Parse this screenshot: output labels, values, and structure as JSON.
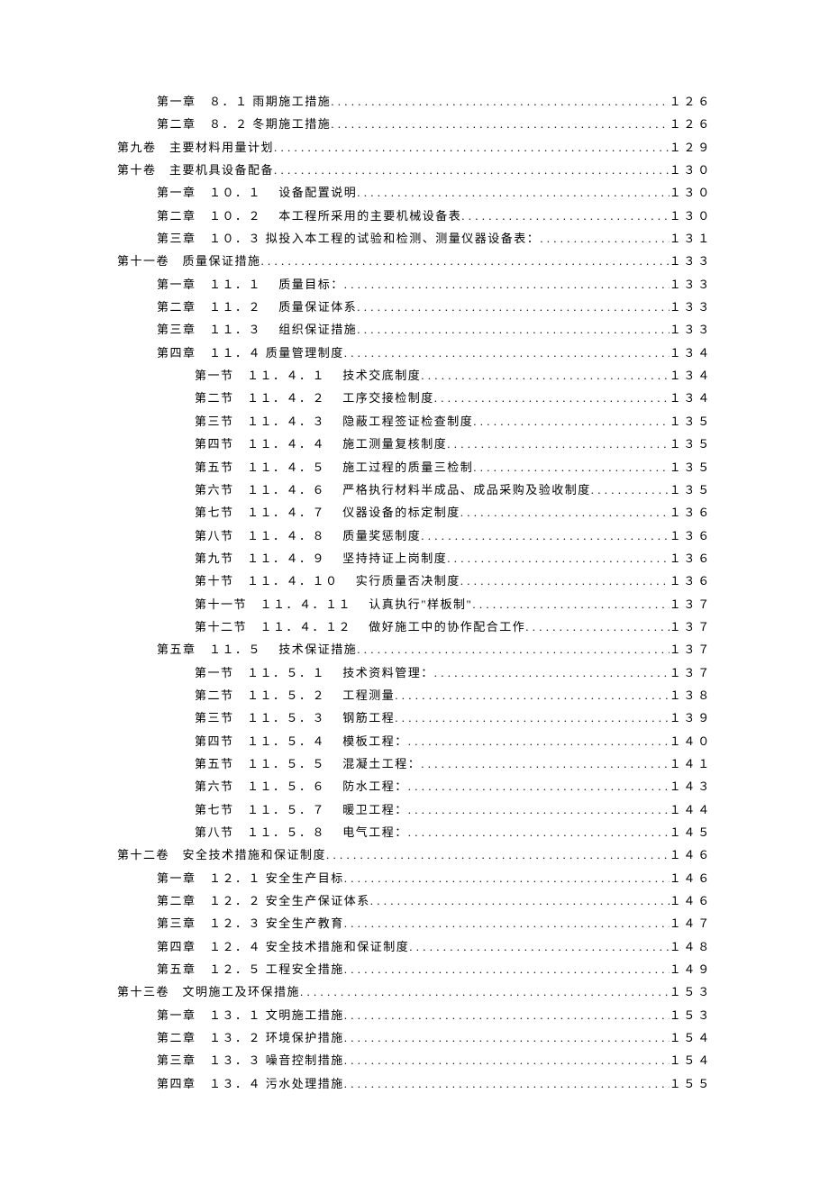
{
  "dots": ". . . . . . . . . . . . . . . . . . . . . . . . . . . . . . . . . . . . . . . . . . . . . . . . . . . . . . . . . . . . . . . . .",
  "entries": [
    {
      "indent": 1,
      "prefix": "第一章",
      "num": "８．１",
      "title": "雨期施工措施",
      "page": "１２６"
    },
    {
      "indent": 1,
      "prefix": "第二章",
      "num": "８．２",
      "title": "冬期施工措施",
      "page": "１２６"
    },
    {
      "indent": 0,
      "prefix": "第九卷",
      "num": "",
      "title": "主要材料用量计划",
      "page": "１２９"
    },
    {
      "indent": 0,
      "prefix": "第十卷",
      "num": "",
      "title": "主要机具设备配备",
      "page": "１３０"
    },
    {
      "indent": 1,
      "prefix": "第一章",
      "num": "１０．１",
      "title": "　设备配置说明",
      "page": "１３０"
    },
    {
      "indent": 1,
      "prefix": "第二章",
      "num": "１０．２",
      "title": "　本工程所采用的主要机械设备表",
      "page": "１３０"
    },
    {
      "indent": 1,
      "prefix": "第三章",
      "num": "１０．３",
      "title": "拟投入本工程的试验和检测、测量仪器设备表：",
      "page": "１３１"
    },
    {
      "indent": 0,
      "prefix": "第十一卷",
      "num": "",
      "title": "质量保证措施",
      "page": "１３３"
    },
    {
      "indent": 1,
      "prefix": "第一章",
      "num": "１１．１",
      "title": "　质量目标：",
      "page": "１３３"
    },
    {
      "indent": 1,
      "prefix": "第二章",
      "num": "１１．２",
      "title": "　质量保证体系",
      "page": "１３３"
    },
    {
      "indent": 1,
      "prefix": "第三章",
      "num": "１１．３",
      "title": "　组织保证措施",
      "page": "１３３"
    },
    {
      "indent": 1,
      "prefix": "第四章",
      "num": "１１．４",
      "title": "质量管理制度",
      "page": "１３４"
    },
    {
      "indent": 2,
      "prefix": "第一节",
      "num": "１１．４．１",
      "title": "　技术交底制度",
      "page": "１３４"
    },
    {
      "indent": 2,
      "prefix": "第二节",
      "num": "１１．４．２",
      "title": "　工序交接检制度",
      "page": "１３４"
    },
    {
      "indent": 2,
      "prefix": "第三节",
      "num": "１１．４．３",
      "title": "　隐蔽工程签证检查制度",
      "page": "１３５"
    },
    {
      "indent": 2,
      "prefix": "第四节",
      "num": "１１．４．４",
      "title": "　施工测量复核制度",
      "page": "１３５"
    },
    {
      "indent": 2,
      "prefix": "第五节",
      "num": "１１．４．５",
      "title": "　施工过程的质量三检制",
      "page": "１３５"
    },
    {
      "indent": 2,
      "prefix": "第六节",
      "num": "１１．４．６",
      "title": "　严格执行材料半成品、成品采购及验收制度",
      "page": "１３５"
    },
    {
      "indent": 2,
      "prefix": "第七节",
      "num": "１１．４．７",
      "title": "　仪器设备的标定制度",
      "page": "１３６"
    },
    {
      "indent": 2,
      "prefix": "第八节",
      "num": "１１．４．８",
      "title": "　质量奖惩制度",
      "page": "１３６"
    },
    {
      "indent": 2,
      "prefix": "第九节",
      "num": "１１．４．９",
      "title": "　坚持持证上岗制度",
      "page": "１３６"
    },
    {
      "indent": 2,
      "prefix": "第十节",
      "num": "１１．４．１０",
      "title": "　实行质量否决制度",
      "page": "１３６"
    },
    {
      "indent": 2,
      "prefix": "第十一节",
      "num": "１１．４．１１",
      "title": "　认真执行\"样板制\"",
      "page": "１３７"
    },
    {
      "indent": 2,
      "prefix": "第十二节",
      "num": "１１．４．１２",
      "title": "　做好施工中的协作配合工作",
      "page": "１３７"
    },
    {
      "indent": 1,
      "prefix": "第五章",
      "num": "１１．５",
      "title": "　技术保证措施",
      "page": "１３７"
    },
    {
      "indent": 2,
      "prefix": "第一节",
      "num": "１１．５．１",
      "title": "　技术资料管理：",
      "page": "１３７"
    },
    {
      "indent": 2,
      "prefix": "第二节",
      "num": "１１．５．２",
      "title": "　工程测量",
      "page": "１３８"
    },
    {
      "indent": 2,
      "prefix": "第三节",
      "num": "１１．５．３",
      "title": "　钢筋工程",
      "page": "１３９"
    },
    {
      "indent": 2,
      "prefix": "第四节",
      "num": "１１．５．４",
      "title": "　模板工程：",
      "page": "１４０"
    },
    {
      "indent": 2,
      "prefix": "第五节",
      "num": "１１．５．５",
      "title": "　混凝土工程：",
      "page": "１４１"
    },
    {
      "indent": 2,
      "prefix": "第六节",
      "num": "１１．５．６",
      "title": "　防水工程：",
      "page": "１４３"
    },
    {
      "indent": 2,
      "prefix": "第七节",
      "num": "１１．５．７",
      "title": "　暖卫工程：",
      "page": "１４４"
    },
    {
      "indent": 2,
      "prefix": "第八节",
      "num": "１１．５．８",
      "title": "　电气工程：",
      "page": "１４５"
    },
    {
      "indent": 0,
      "prefix": "第十二卷",
      "num": "",
      "title": "安全技术措施和保证制度",
      "page": "１４６"
    },
    {
      "indent": 1,
      "prefix": "第一章",
      "num": "１２．１",
      "title": "安全生产目标",
      "page": "１４６"
    },
    {
      "indent": 1,
      "prefix": "第二章",
      "num": "１２．２",
      "title": "安全生产保证体系",
      "page": "１４６"
    },
    {
      "indent": 1,
      "prefix": "第三章",
      "num": "１２．３",
      "title": "安全生产教育",
      "page": "１４７"
    },
    {
      "indent": 1,
      "prefix": "第四章",
      "num": "１２．４",
      "title": "安全技术措施和保证制度",
      "page": "１４８"
    },
    {
      "indent": 1,
      "prefix": "第五章",
      "num": "１２．５",
      "title": "工程安全措施",
      "page": "１４９"
    },
    {
      "indent": 0,
      "prefix": "第十三卷",
      "num": "",
      "title": "文明施工及环保措施",
      "page": "１５３"
    },
    {
      "indent": 1,
      "prefix": "第一章",
      "num": "１３．１",
      "title": "文明施工措施",
      "page": "１５３"
    },
    {
      "indent": 1,
      "prefix": "第二章",
      "num": "１３．２",
      "title": "环境保护措施",
      "page": "１５４"
    },
    {
      "indent": 1,
      "prefix": "第三章",
      "num": "１３．３",
      "title": "噪音控制措施",
      "page": "１５４"
    },
    {
      "indent": 1,
      "prefix": "第四章",
      "num": "１３．４",
      "title": "污水处理措施",
      "page": "１５５"
    }
  ]
}
